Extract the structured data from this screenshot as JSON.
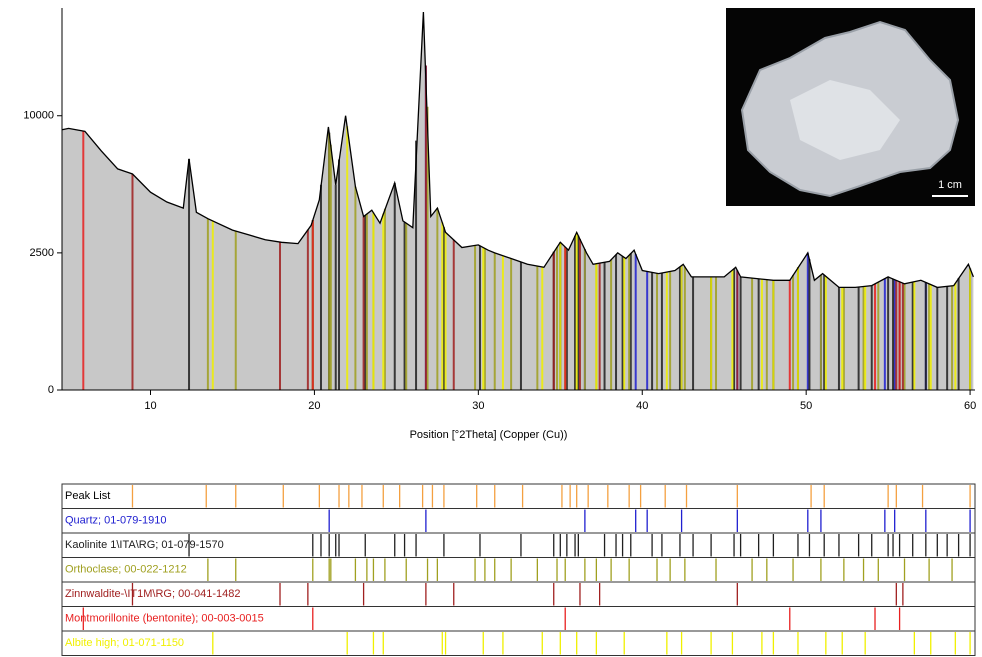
{
  "chart_data": {
    "type": "line",
    "xlabel": "Position [°2Theta] (Copper (Cu))",
    "color": "#000000",
    "fill": "#c8c8c8",
    "yscale": "sqrt",
    "xlim": [
      4.6,
      60.3
    ],
    "ylim": [
      0,
      19400
    ],
    "xticks": [
      10,
      20,
      30,
      40,
      50,
      60
    ],
    "yticks": [
      0,
      2500,
      10000
    ],
    "x": [
      4.6,
      5,
      6,
      7,
      8,
      8.9,
      10,
      11,
      12,
      12.35,
      12.8,
      13.5,
      15,
      16,
      17,
      18,
      19,
      19.8,
      20.3,
      20.85,
      21.3,
      21.9,
      22.5,
      23,
      23.5,
      24,
      24.9,
      25.4,
      26,
      26.65,
      27.1,
      27.5,
      28,
      29,
      30,
      30.6,
      31,
      32,
      33,
      34,
      35,
      35.5,
      36,
      36.6,
      37,
      38,
      38.5,
      39,
      39.5,
      40,
      41,
      42,
      42.5,
      43,
      44,
      45,
      45.7,
      46,
      48,
      49,
      50.1,
      50.5,
      51,
      52,
      53,
      54,
      55,
      56,
      57,
      58,
      59,
      59.9,
      60.2
    ],
    "values": [
      9000,
      9100,
      8900,
      7600,
      6500,
      6200,
      5200,
      4700,
      4400,
      7100,
      4200,
      3900,
      3400,
      3200,
      3000,
      2900,
      2850,
      3600,
      4800,
      9200,
      5600,
      10000,
      5500,
      4000,
      4300,
      3700,
      5700,
      3800,
      3500,
      19000,
      4000,
      4400,
      3300,
      2700,
      2800,
      2600,
      2500,
      2300,
      2100,
      2000,
      2900,
      2600,
      3300,
      2500,
      2100,
      2200,
      2500,
      2300,
      2600,
      1900,
      1800,
      1900,
      2100,
      1700,
      1700,
      1700,
      2000,
      1700,
      1600,
      1600,
      2500,
      1600,
      1800,
      1400,
      1400,
      1450,
      1700,
      1500,
      1600,
      1400,
      1450,
      2100,
      1700
    ],
    "peak_list": {
      "name": "Peak List",
      "label_color": "#000000",
      "color": "#f4a040",
      "positions": [
        8.9,
        13.4,
        15.2,
        18.1,
        20.3,
        21.5,
        22.1,
        22.9,
        24.2,
        25.2,
        26.6,
        27.2,
        27.9,
        29.9,
        31.0,
        32.7,
        35.1,
        35.6,
        36.0,
        36.7,
        37.9,
        39.2,
        39.9,
        41.4,
        42.7,
        45.8,
        50.3,
        51.1,
        55.0,
        55.5,
        57.1,
        60.0
      ]
    },
    "phases": [
      {
        "name": "Quartz; 01-079-1910",
        "color": "#2020d0",
        "positions": [
          20.9,
          26.8,
          36.5,
          39.6,
          40.3,
          42.4,
          45.8,
          50.1,
          50.9,
          54.8,
          55.4,
          57.3,
          60.0
        ]
      },
      {
        "name": "Kaolinite 1\\ITA\\RG; 01-079-1570",
        "color": "#202020",
        "positions": [
          12.35,
          19.9,
          20.4,
          20.9,
          21.3,
          21.5,
          23.1,
          24.9,
          25.5,
          26.2,
          27.9,
          30.1,
          32.6,
          34.6,
          35.0,
          35.4,
          35.9,
          36.1,
          37.7,
          38.4,
          38.8,
          39.3,
          40.6,
          41.2,
          42.3,
          43.1,
          44.2,
          45.6,
          46.0,
          47.1,
          48.0,
          49.5,
          50.2,
          51.1,
          52.0,
          53.2,
          54.0,
          55.0,
          55.3,
          55.7,
          56.5,
          57.3,
          58.0,
          58.6,
          59.3,
          60.0
        ]
      },
      {
        "name": "Orthoclase; 00-022-1212",
        "color": "#a0a020",
        "positions": [
          13.5,
          15.2,
          19.9,
          20.9,
          21.0,
          22.5,
          23.2,
          23.6,
          24.3,
          25.6,
          26.9,
          27.5,
          29.8,
          30.4,
          31.0,
          32.0,
          33.6,
          34.8,
          35.3,
          36.5,
          37.2,
          38.1,
          39.2,
          40.9,
          41.7,
          42.6,
          44.5,
          46.7,
          47.6,
          49.2,
          50.9,
          52.3,
          53.5,
          54.4,
          56.0,
          57.5,
          58.9
        ]
      },
      {
        "name": "Zinnwaldite-\\IT1M\\RG; 00-041-1482",
        "color": "#a02020",
        "positions": [
          8.9,
          17.9,
          19.6,
          23.0,
          26.8,
          28.5,
          34.6,
          36.2,
          37.4,
          45.8,
          55.5,
          55.9
        ]
      },
      {
        "name": "Montmorillonite (bentonite); 00-003-0015",
        "color": "#e82020",
        "positions": [
          5.9,
          19.9,
          35.3,
          49.0,
          54.2,
          55.7
        ]
      },
      {
        "name": "Albite high; 01-071-1150",
        "color": "#f0f000",
        "positions": [
          13.8,
          22.0,
          23.6,
          24.2,
          27.8,
          28.0,
          30.3,
          31.5,
          33.9,
          35.0,
          36.0,
          37.2,
          38.9,
          41.5,
          42.4,
          44.2,
          45.5,
          47.3,
          48.0,
          49.5,
          51.2,
          52.2,
          53.6,
          56.6,
          57.6,
          59.1,
          60.0
        ]
      }
    ],
    "inset": {
      "scale_label": "1 cm"
    }
  }
}
